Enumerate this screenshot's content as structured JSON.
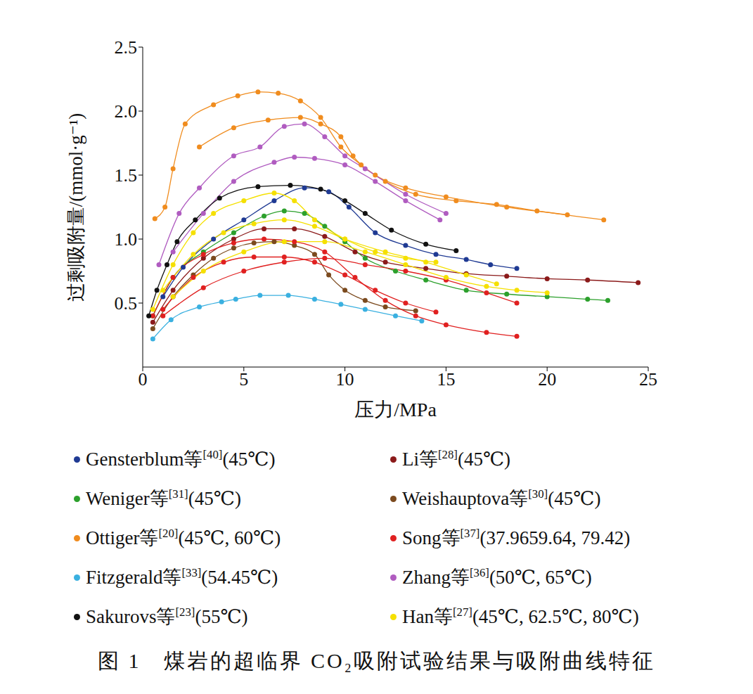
{
  "chart_data": {
    "type": "line",
    "title": "图 1　煤岩的超临界 CO₂吸附试验结果与吸附曲线特征",
    "x_label": "压力/MPa",
    "y_label": "过剩吸附量/(mmol·g⁻¹)",
    "xlim": [
      0,
      25
    ],
    "xticks": [
      0,
      5,
      10,
      15,
      20,
      25
    ],
    "ylim": [
      0,
      2.5
    ],
    "yticks": [
      0.5,
      {
        "value": 1,
        "label": "1.0"
      },
      1.5,
      {
        "value": 2,
        "label": "2.0"
      },
      2.5
    ],
    "marker": "circle",
    "legend": "bottom",
    "grid": false,
    "series": [
      {
        "name": "Gensterblum等[40](45℃)",
        "color": "#1f3a93",
        "curves": [
          {
            "x": [
              1,
              2,
              3.5,
              5,
              6.5,
              8,
              9.2,
              10.2,
              11.5,
              13,
              14.5,
              16,
              17.2,
              18.5
            ],
            "values": [
              0.55,
              0.78,
              1.0,
              1.15,
              1.3,
              1.4,
              1.37,
              1.25,
              1.05,
              0.95,
              0.88,
              0.84,
              0.8,
              0.77
            ]
          }
        ]
      },
      {
        "name": "Li等[28](45℃)",
        "color": "#8b1a1a",
        "curves": [
          {
            "x": [
              0.5,
              1.5,
              3,
              4.5,
              6,
              7.5,
              9,
              10.5,
              12,
              14,
              16,
              18,
              20,
              22,
              24.5
            ],
            "values": [
              0.35,
              0.6,
              0.85,
              1.0,
              1.08,
              1.08,
              1.02,
              0.9,
              0.82,
              0.77,
              0.73,
              0.71,
              0.69,
              0.68,
              0.66
            ]
          }
        ]
      },
      {
        "name": "Weniger等[31](45℃)",
        "color": "#2ca02c",
        "curves": [
          {
            "x": [
              0.5,
              1.5,
              3,
              4.5,
              6,
              7,
              8,
              9,
              10,
              11,
              12.5,
              14,
              16,
              18,
              20,
              22,
              23
            ],
            "values": [
              0.4,
              0.7,
              0.9,
              1.05,
              1.18,
              1.22,
              1.2,
              1.1,
              0.98,
              0.85,
              0.75,
              0.68,
              0.6,
              0.57,
              0.55,
              0.53,
              0.52
            ]
          }
        ]
      },
      {
        "name": "Weishauptova等[30](45℃)",
        "color": "#7b4a1e",
        "curves": [
          {
            "x": [
              0.5,
              1.5,
              2.5,
              3.5,
              4.5,
              5.5,
              6.5,
              7.5,
              8.5,
              9.2,
              10,
              11,
              12,
              13.5
            ],
            "values": [
              0.3,
              0.55,
              0.72,
              0.85,
              0.93,
              0.97,
              0.98,
              0.95,
              0.88,
              0.72,
              0.6,
              0.52,
              0.47,
              0.44
            ]
          }
        ]
      },
      {
        "name": "Ottiger等[20](45℃, 60℃)",
        "color": "#f08c1e",
        "curves": [
          {
            "x": [
              0.6,
              1.1,
              1.5,
              2.1,
              3.5,
              4.7,
              5.7,
              6.7,
              7.8,
              8.8,
              9.8,
              10.8,
              12,
              13.5,
              15.5,
              17.5,
              19.5,
              22.8
            ],
            "values": [
              1.16,
              1.25,
              1.55,
              1.9,
              2.05,
              2.12,
              2.15,
              2.14,
              2.08,
              1.95,
              1.72,
              1.58,
              1.45,
              1.35,
              1.3,
              1.27,
              1.22,
              1.15
            ]
          },
          {
            "x": [
              2.8,
              4.5,
              6.2,
              7.8,
              8.8,
              9.8,
              10.4,
              11.5,
              13,
              15,
              18,
              21
            ],
            "values": [
              1.72,
              1.87,
              1.93,
              1.95,
              1.9,
              1.8,
              1.65,
              1.5,
              1.4,
              1.33,
              1.25,
              1.19
            ]
          }
        ]
      },
      {
        "name": "Song等[37](37.9659.64, 79.42)",
        "color": "#e02020",
        "curves": [
          {
            "x": [
              0.5,
              1.5,
              3,
              4.5,
              6,
              7.5,
              9,
              10.5,
              12,
              13.5,
              15,
              17,
              18.5
            ],
            "values": [
              0.4,
              0.7,
              0.88,
              0.97,
              1.0,
              0.98,
              0.9,
              0.7,
              0.52,
              0.4,
              0.33,
              0.27,
              0.24
            ]
          },
          {
            "x": [
              1,
              2.5,
              4,
              5.5,
              7,
              8.5,
              10,
              11.5,
              13,
              14.5
            ],
            "values": [
              0.45,
              0.7,
              0.82,
              0.86,
              0.86,
              0.82,
              0.72,
              0.6,
              0.5,
              0.43
            ]
          },
          {
            "x": [
              1,
              3,
              5,
              7,
              9,
              11,
              13,
              15,
              17,
              18.5
            ],
            "values": [
              0.4,
              0.62,
              0.75,
              0.82,
              0.85,
              0.8,
              0.75,
              0.68,
              0.58,
              0.5
            ]
          }
        ]
      },
      {
        "name": "Fitzgerald等[33](54.45℃)",
        "color": "#3ab0e0",
        "curves": [
          {
            "x": [
              0.5,
              1.4,
              2.8,
              3.9,
              4.6,
              5.8,
              7.2,
              8.5,
              9.8,
              11,
              12.5,
              13.8
            ],
            "values": [
              0.22,
              0.37,
              0.47,
              0.51,
              0.53,
              0.56,
              0.56,
              0.53,
              0.49,
              0.45,
              0.4,
              0.36
            ]
          }
        ]
      },
      {
        "name": "Zhang等[36](50℃, 65℃)",
        "color": "#b05cc0",
        "curves": [
          {
            "x": [
              0.8,
              1.8,
              2.8,
              4.5,
              5.8,
              7,
              8,
              9,
              10,
              11,
              13,
              15
            ],
            "values": [
              0.8,
              1.2,
              1.4,
              1.65,
              1.72,
              1.88,
              1.9,
              1.8,
              1.65,
              1.55,
              1.35,
              1.2
            ]
          },
          {
            "x": [
              1.5,
              3,
              4.5,
              6.5,
              7.5,
              8.5,
              10,
              11.5,
              13,
              14.7
            ],
            "values": [
              0.9,
              1.2,
              1.45,
              1.6,
              1.64,
              1.63,
              1.58,
              1.45,
              1.3,
              1.15
            ]
          }
        ]
      },
      {
        "name": "Sakurovs等[23](55℃)",
        "color": "#111111",
        "curves": [
          {
            "x": [
              0.3,
              0.7,
              1.2,
              1.7,
              2.6,
              3.8,
              5.7,
              7.3,
              8.8,
              10,
              11,
              12.3,
              14,
              15.5
            ],
            "values": [
              0.4,
              0.6,
              0.8,
              0.98,
              1.15,
              1.32,
              1.41,
              1.42,
              1.39,
              1.3,
              1.2,
              1.07,
              0.96,
              0.91
            ]
          }
        ]
      },
      {
        "name": "Han等[27](45℃, 62.5℃, 80℃)",
        "color": "#f5e000",
        "curves": [
          {
            "x": [
              0.5,
              1.5,
              2.5,
              3.5,
              5,
              6.5,
              7.5,
              8.5,
              10,
              11.5,
              13,
              14.5
            ],
            "values": [
              0.45,
              0.8,
              1.05,
              1.2,
              1.3,
              1.36,
              1.3,
              1.15,
              1.0,
              0.9,
              0.85,
              0.82
            ]
          },
          {
            "x": [
              1,
              2.5,
              4,
              5.5,
              7,
              8.5,
              10,
              12,
              14,
              16,
              17.5
            ],
            "values": [
              0.6,
              0.88,
              1.05,
              1.12,
              1.15,
              1.1,
              1.0,
              0.9,
              0.82,
              0.72,
              0.65
            ]
          },
          {
            "x": [
              1.5,
              3,
              5,
              7,
              9,
              11,
              13,
              15,
              17,
              18.5,
              20
            ],
            "values": [
              0.55,
              0.75,
              0.9,
              0.98,
              0.98,
              0.9,
              0.8,
              0.7,
              0.63,
              0.6,
              0.58
            ]
          }
        ]
      }
    ]
  }
}
